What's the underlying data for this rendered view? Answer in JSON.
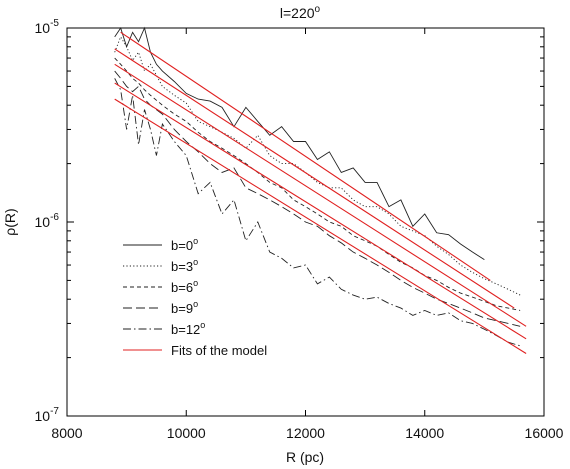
{
  "chart_data": {
    "type": "line",
    "title": "l=220",
    "title_superscript": "o",
    "xlabel": "R (pc)",
    "ylabel": "ρ(R)",
    "x_scale": "linear",
    "y_scale": "log",
    "xlim": [
      8000,
      16000
    ],
    "ylim": [
      1e-07,
      1e-05
    ],
    "x_ticks": [
      8000,
      10000,
      12000,
      14000,
      16000
    ],
    "x_tick_labels": [
      "8000",
      "10000",
      "12000",
      "14000",
      "16000"
    ],
    "y_ticks": [
      {
        "value": 1e-05,
        "base": "10",
        "exp": "-5"
      },
      {
        "value": 1e-06,
        "base": "10",
        "exp": "-6"
      },
      {
        "value": 1e-07,
        "base": "10",
        "exp": "-7"
      }
    ],
    "legend_position": "lower-left",
    "colors": {
      "data": "#222222",
      "fit": "#e02020"
    },
    "series": [
      {
        "name": "b=0",
        "name_superscript": "o",
        "dash": "solid",
        "x": [
          8800,
          8900,
          9000,
          9100,
          9200,
          9300,
          9400,
          9500,
          9600,
          9800,
          10000,
          10200,
          10400,
          10600,
          10800,
          11000,
          11200,
          11400,
          11600,
          11800,
          12000,
          12200,
          12400,
          12600,
          12800,
          13000,
          13200,
          13400,
          13600,
          13800,
          14000,
          14200,
          14400,
          14600,
          14800,
          15000
        ],
        "y": [
          9e-06,
          1e-05,
          8e-06,
          9.5e-06,
          8.5e-06,
          1e-05,
          7.5e-06,
          6.5e-06,
          6e-06,
          5.3e-06,
          4.6e-06,
          4.3e-06,
          4.2e-06,
          3.9e-06,
          3.1e-06,
          3.9e-06,
          3.3e-06,
          2.8e-06,
          3.1e-06,
          2.6e-06,
          2.6e-06,
          2.1e-06,
          2.3e-06,
          1.8e-06,
          1.9e-06,
          1.6e-06,
          1.6e-06,
          1.2e-06,
          1.3e-06,
          9.5e-07,
          1.1e-06,
          8.8e-07,
          8.6e-07,
          7.7e-07,
          7e-07,
          6.4e-07
        ]
      },
      {
        "name": "b=3",
        "name_superscript": "o",
        "dash": "dotted",
        "x": [
          8800,
          8900,
          9000,
          9100,
          9200,
          9300,
          9400,
          9600,
          9800,
          10000,
          10200,
          10400,
          10600,
          10800,
          11000,
          11200,
          11400,
          11600,
          11800,
          12000,
          12200,
          12400,
          12600,
          12800,
          13000,
          13200,
          13400,
          13600,
          13800,
          14000,
          14200,
          14400,
          14600,
          14800,
          15000,
          15200,
          15400,
          15600
        ],
        "y": [
          7.5e-06,
          9e-06,
          8e-06,
          6.8e-06,
          7.5e-06,
          6e-06,
          6.5e-06,
          5e-06,
          4.5e-06,
          4.1e-06,
          3.3e-06,
          3.1e-06,
          2.9e-06,
          2.7e-06,
          2.4e-06,
          2.8e-06,
          2.2e-06,
          2e-06,
          2e-06,
          1.8e-06,
          1.6e-06,
          1.5e-06,
          1.5e-06,
          1.3e-06,
          1.2e-06,
          1.2e-06,
          1.1e-06,
          9.5e-07,
          9e-07,
          8.5e-07,
          7.5e-07,
          6.8e-07,
          6e-07,
          5.5e-07,
          5.1e-07,
          4.8e-07,
          4.5e-07,
          4.2e-07
        ]
      },
      {
        "name": "b=6",
        "name_superscript": "o",
        "dash": "dashed",
        "x": [
          8800,
          8900,
          9000,
          9100,
          9200,
          9300,
          9400,
          9600,
          9800,
          10000,
          10200,
          10400,
          10600,
          10800,
          11000,
          11200,
          11400,
          11600,
          11800,
          12000,
          12200,
          12400,
          12600,
          12800,
          13000,
          13200,
          13400,
          13600,
          13800,
          14000,
          14200,
          14400,
          14600,
          14800,
          15000,
          15200,
          15400,
          15600
        ],
        "y": [
          7e-06,
          6.5e-06,
          6e-06,
          5.5e-06,
          5.2e-06,
          4.8e-06,
          4.5e-06,
          4e-06,
          3.6e-06,
          3.3e-06,
          2.9e-06,
          2.6e-06,
          2.4e-06,
          2.2e-06,
          2e-06,
          1.8e-06,
          1.6e-06,
          1.5e-06,
          1.3e-06,
          1.2e-06,
          1.1e-06,
          1e-06,
          9.5e-07,
          8.5e-07,
          8e-07,
          7.5e-07,
          6.8e-07,
          6.2e-07,
          5.8e-07,
          5.3e-07,
          5e-07,
          4.6e-07,
          4.3e-07,
          4.1e-07,
          3.9e-07,
          3.7e-07,
          3.6e-07,
          3.5e-07
        ]
      },
      {
        "name": "b=9",
        "name_superscript": "o",
        "dash": "long-dash",
        "x": [
          8800,
          8900,
          9000,
          9100,
          9200,
          9300,
          9400,
          9600,
          9800,
          10000,
          10200,
          10400,
          10600,
          10800,
          11000,
          11200,
          11400,
          11600,
          11800,
          12000,
          12200,
          12400,
          12600,
          12800,
          13000,
          13200,
          13400,
          13600,
          13800,
          14000,
          14200,
          14400,
          14600,
          14800,
          15000,
          15200,
          15400,
          15600
        ],
        "y": [
          6e-06,
          5.5e-06,
          5e-06,
          4.7e-06,
          5e-06,
          4.3e-06,
          4e-06,
          3.6e-06,
          3e-06,
          2.6e-06,
          2.3e-06,
          2e-06,
          1.8e-06,
          1.9e-06,
          1.5e-06,
          1.4e-06,
          1.3e-06,
          1.2e-06,
          1.1e-06,
          1e-06,
          9.5e-07,
          8.5e-07,
          7.8e-07,
          7e-07,
          6.5e-07,
          6e-07,
          5.5e-07,
          5e-07,
          4.6e-07,
          4.3e-07,
          4e-07,
          3.8e-07,
          3.6e-07,
          3.4e-07,
          3.2e-07,
          3.1e-07,
          3e-07,
          2.9e-07
        ]
      },
      {
        "name": "b=12",
        "name_superscript": "o",
        "dash": "dash-dot",
        "x": [
          8800,
          8900,
          9000,
          9100,
          9200,
          9300,
          9400,
          9500,
          9600,
          9800,
          10000,
          10200,
          10400,
          10600,
          10800,
          11000,
          11200,
          11400,
          11600,
          11800,
          12000,
          12200,
          12400,
          12600,
          12800,
          13000,
          13200,
          13400,
          13600,
          13800,
          14000,
          14200,
          14400,
          14600,
          14800,
          15000,
          15200,
          15400,
          15600
        ],
        "y": [
          5.5e-06,
          4.8e-06,
          3e-06,
          4.5e-06,
          2.5e-06,
          3.8e-06,
          3e-06,
          2.2e-06,
          3.2e-06,
          2.6e-06,
          2.2e-06,
          1.4e-06,
          1.6e-06,
          1.1e-06,
          1.3e-06,
          8e-07,
          1e-06,
          7e-07,
          6.5e-07,
          5.8e-07,
          6e-07,
          4.8e-07,
          5.2e-07,
          4.5e-07,
          4.2e-07,
          4e-07,
          4.1e-07,
          3.8e-07,
          3.6e-07,
          3.3e-07,
          3.5e-07,
          3.3e-07,
          3.4e-07,
          3.1e-07,
          3e-07,
          2.8e-07,
          2.6e-07,
          2.4e-07,
          2.3e-07
        ]
      },
      {
        "name": "Fits of the model",
        "dash": "fit",
        "is_fit": true,
        "fits": [
          {
            "x": [
              8900,
              15100
            ],
            "y": [
              9.5e-06,
              5e-07
            ]
          },
          {
            "x": [
              8800,
              15500
            ],
            "y": [
              7.8e-06,
              3.6e-07
            ]
          },
          {
            "x": [
              8800,
              15700
            ],
            "y": [
              6.5e-06,
              2.9e-07
            ]
          },
          {
            "x": [
              8800,
              15700
            ],
            "y": [
              5.2e-06,
              2.5e-07
            ]
          },
          {
            "x": [
              8800,
              15700
            ],
            "y": [
              4.3e-06,
              2.1e-07
            ]
          }
        ]
      }
    ]
  }
}
